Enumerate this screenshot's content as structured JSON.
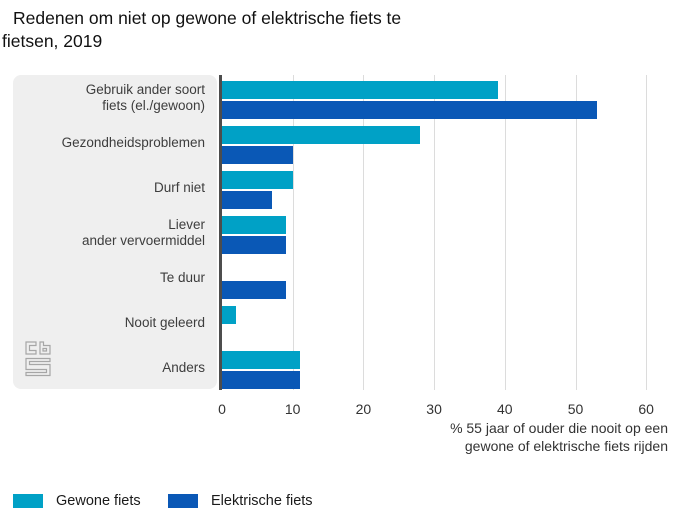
{
  "title": {
    "line1": "Redenen om niet op gewone of elektrische fiets te",
    "line2": "fietsen, 2019"
  },
  "axis_caption": {
    "line1": "% 55 jaar of ouder die nooit op een",
    "line2": "gewone of elektrische fiets rijden"
  },
  "branding": {
    "logo": "cbs-logo"
  },
  "colors": {
    "panel": "#efefef",
    "axis_line": "#4d4d4d",
    "gridline": "#dcdcdc",
    "logo_gray": "#a6a6a6",
    "series_light_blue": "#00a1c6",
    "series_dark_blue": "#0a58b6"
  },
  "chart_data": {
    "type": "bar",
    "orientation": "horizontal",
    "title": "Redenen om niet op gewone of elektrische fiets te fietsen, 2019",
    "categories": [
      "Gebruik ander soort fiets (el./gewoon)",
      "Gezondheidsproblemen",
      "Durf niet",
      "Liever ander vervoermiddel",
      "Te duur",
      "Nooit geleerd",
      "Anders"
    ],
    "category_display_lines": [
      [
        "Gebruik ander soort",
        "fiets (el./gewoon)"
      ],
      [
        "Gezondheidsproblemen"
      ],
      [
        "Durf niet"
      ],
      [
        "Liever",
        "ander vervoermiddel"
      ],
      [
        "Te duur"
      ],
      [
        "Nooit geleerd"
      ],
      [
        "Anders"
      ]
    ],
    "series": [
      {
        "name": "Gewone fiets",
        "color": "#00a1c6",
        "values": [
          39,
          28,
          10,
          9,
          0,
          2,
          11
        ]
      },
      {
        "name": "Elektrische fiets",
        "color": "#0a58b6",
        "values": [
          53,
          10,
          7,
          9,
          9,
          0,
          11
        ]
      }
    ],
    "xlabel": "% 55 jaar of ouder die nooit op een gewone of elektrische fiets rijden",
    "ylabel": "",
    "xlim": [
      0,
      60
    ],
    "x_ticks": [
      0,
      10,
      20,
      30,
      40,
      50,
      60
    ],
    "grid": "vertical",
    "legend_position": "bottom-left"
  }
}
